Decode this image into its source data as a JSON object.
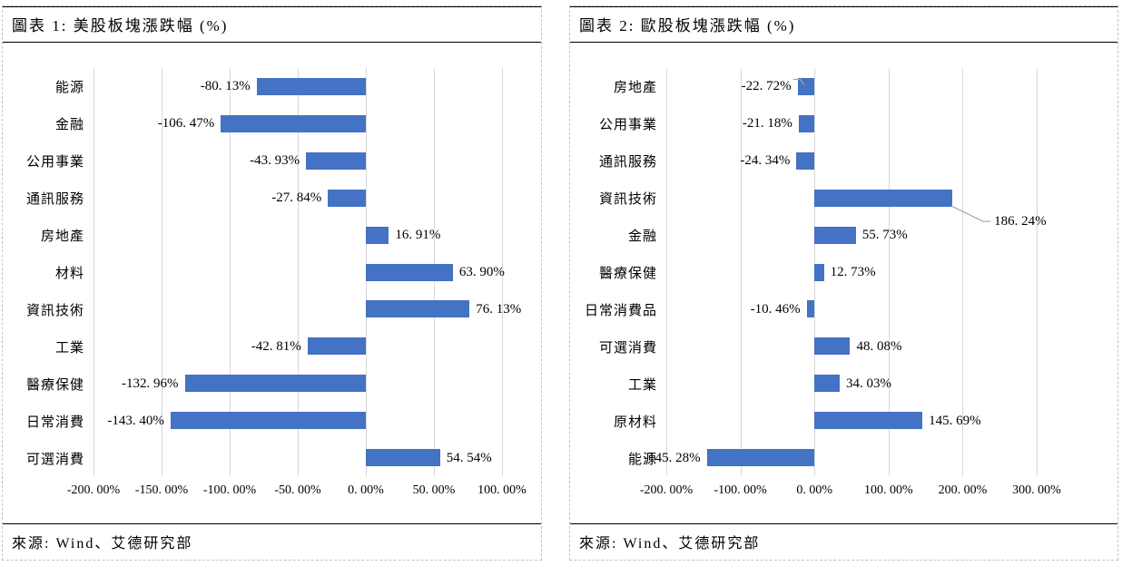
{
  "panels": [
    {
      "title": "圖表 1: 美股板塊漲跌幅 (%)",
      "source": "來源: Wind、艾德研究部"
    },
    {
      "title": "圖表 2: 歐股板塊漲跌幅 (%)",
      "source": "來源: Wind、艾德研究部"
    }
  ],
  "colors": {
    "bar": "#4472C4",
    "gridline": "#D8D8D8",
    "leader_line": "#A6A6A6"
  },
  "chart_data": [
    {
      "type": "bar",
      "orientation": "horizontal",
      "title": "圖表 1: 美股板塊漲跌幅 (%)",
      "categories": [
        "能源",
        "金融",
        "公用事業",
        "通訊服務",
        "房地產",
        "材料",
        "資訊技術",
        "工業",
        "醫療保健",
        "日常消費",
        "可選消費"
      ],
      "values": [
        -80.13,
        -106.47,
        -43.93,
        -27.84,
        16.91,
        63.9,
        76.13,
        -42.81,
        -132.96,
        -143.4,
        54.54
      ],
      "value_labels": [
        "-80. 13%",
        "-106. 47%",
        "-43. 93%",
        "-27. 84%",
        "16. 91%",
        "63. 90%",
        "76. 13%",
        "-42. 81%",
        "-132. 96%",
        "-143. 40%",
        "54. 54%"
      ],
      "xlim": [
        -200,
        100
      ],
      "xticks": [
        -200,
        -150,
        -100,
        -50,
        0,
        50,
        100
      ],
      "xtick_labels": [
        "-200. 00%",
        "-150. 00%",
        "-100. 00%",
        "-50. 00%",
        "0. 00%",
        "50. 00%",
        "100. 00%"
      ],
      "bar_color": "#4472C4",
      "grid": true,
      "legend": "none",
      "callouts": []
    },
    {
      "type": "bar",
      "orientation": "horizontal",
      "title": "圖表 2: 歐股板塊漲跌幅 (%)",
      "categories": [
        "房地產",
        "公用事業",
        "通訊服務",
        "資訊技術",
        "金融",
        "醫療保健",
        "日常消費品",
        "可選消費",
        "工業",
        "原材料",
        "能源"
      ],
      "values": [
        -22.72,
        -21.18,
        -24.34,
        186.24,
        55.73,
        12.73,
        -10.46,
        48.08,
        34.03,
        145.69,
        -145.28
      ],
      "value_labels": [
        "-22. 72%",
        "-21. 18%",
        "-24. 34%",
        "186. 24%",
        "55. 73%",
        "12. 73%",
        "-10. 46%",
        "48. 08%",
        "34. 03%",
        "145. 69%",
        "-145. 28%"
      ],
      "xlim": [
        -200,
        300
      ],
      "xticks": [
        -200,
        -100,
        0,
        100,
        200,
        300
      ],
      "xtick_labels": [
        "-200. 00%",
        "-100. 00%",
        "0. 00%",
        "100. 00%",
        "200. 00%",
        "300. 00%"
      ],
      "bar_color": "#4472C4",
      "grid": true,
      "legend": "none",
      "callouts": [
        {
          "index": 0,
          "category": "房地產",
          "type": "hook"
        },
        {
          "index": 3,
          "category": "資訊技術",
          "type": "below-right"
        }
      ]
    }
  ]
}
